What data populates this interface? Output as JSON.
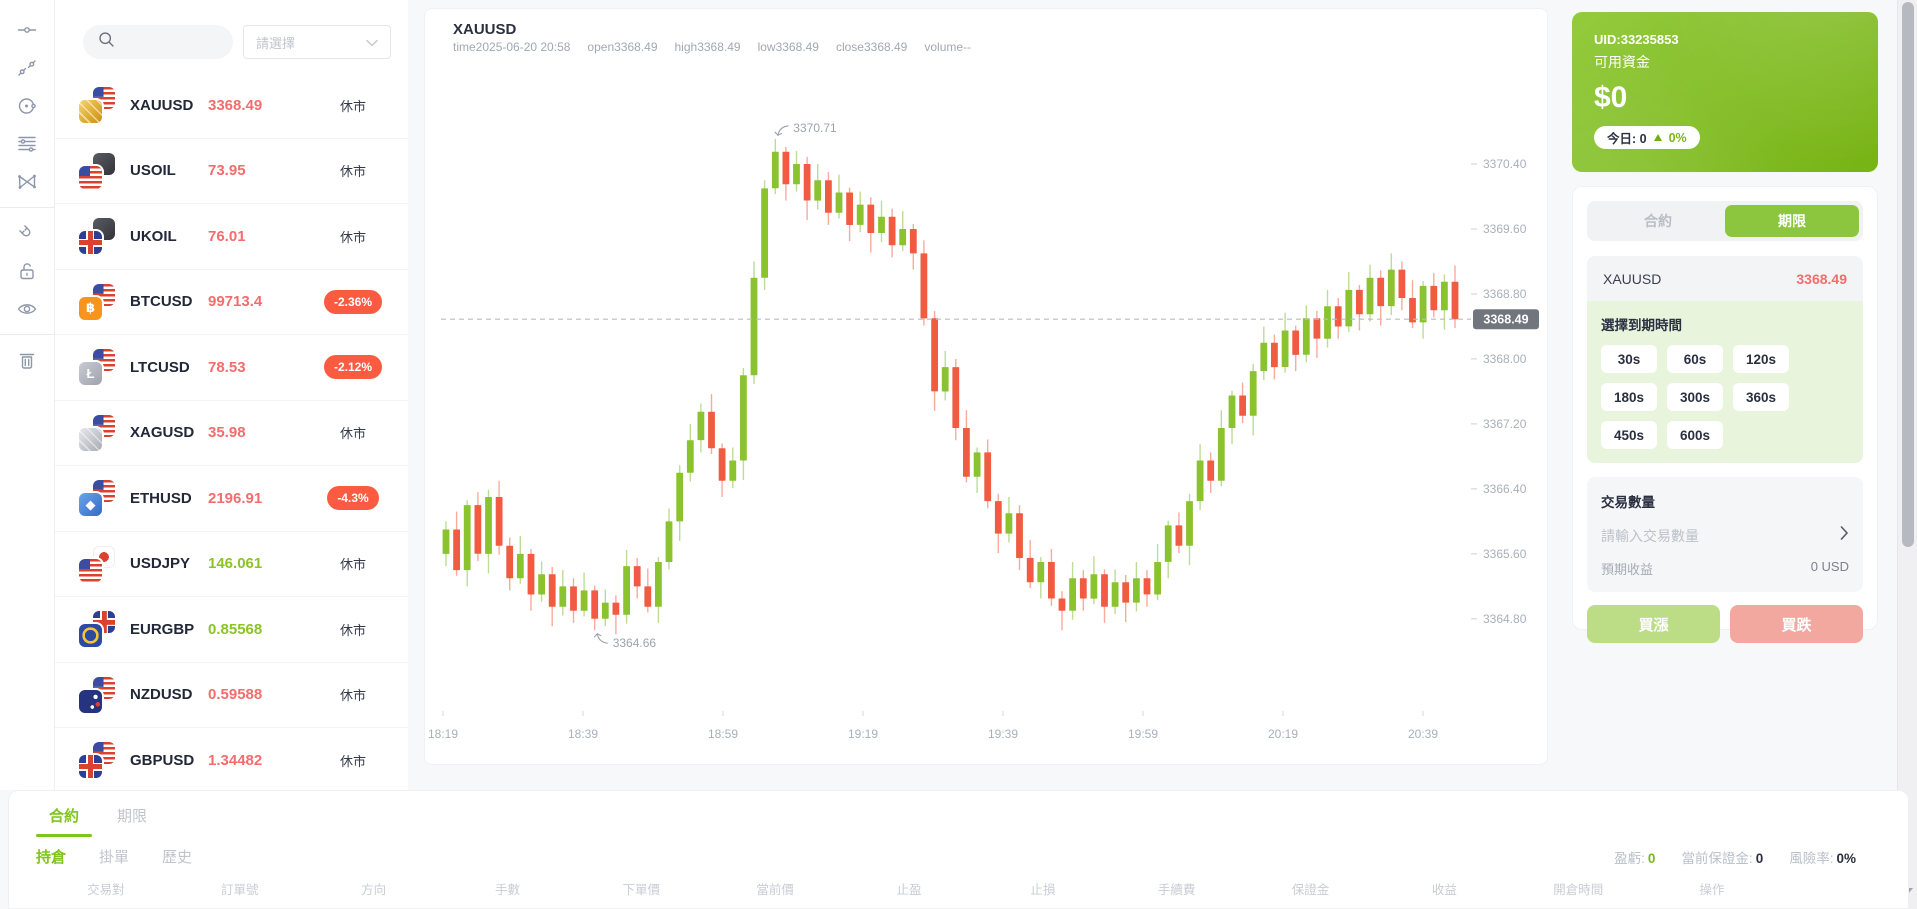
{
  "rail": {
    "tools": [
      {
        "name": "horizontal-line",
        "divider_after": false
      },
      {
        "name": "trend-line",
        "divider_after": false
      },
      {
        "name": "ellipse",
        "divider_after": false
      },
      {
        "name": "fib-retracement",
        "divider_after": false
      },
      {
        "name": "xabcd-pattern",
        "divider_after": true
      },
      {
        "name": "magnet",
        "divider_after": false
      },
      {
        "name": "unlock",
        "divider_after": false
      },
      {
        "name": "visibility",
        "divider_after": true
      },
      {
        "name": "delete",
        "divider_after": false
      }
    ]
  },
  "watchlist": {
    "select_value": "請選擇",
    "items": [
      {
        "symbol": "XAUUSD",
        "price": "3368.49",
        "price_color": "red",
        "status": "休市",
        "status_type": "text",
        "icon_front": "gold",
        "icon_back": "us"
      },
      {
        "symbol": "USOIL",
        "price": "73.95",
        "price_color": "red",
        "status": "休市",
        "status_type": "text",
        "icon_front": "us",
        "icon_back": "oil"
      },
      {
        "symbol": "UKOIL",
        "price": "76.01",
        "price_color": "red",
        "status": "休市",
        "status_type": "text",
        "icon_front": "uk",
        "icon_back": "oil"
      },
      {
        "symbol": "BTCUSD",
        "price": "99713.4",
        "price_color": "red",
        "status": "-2.36%",
        "status_type": "badge",
        "icon_front": "btc",
        "icon_back": "us"
      },
      {
        "symbol": "LTCUSD",
        "price": "78.53",
        "price_color": "red",
        "status": "-2.12%",
        "status_type": "badge",
        "icon_front": "ltc",
        "icon_back": "us"
      },
      {
        "symbol": "XAGUSD",
        "price": "35.98",
        "price_color": "red",
        "status": "休市",
        "status_type": "text",
        "icon_front": "silver",
        "icon_back": "us"
      },
      {
        "symbol": "ETHUSD",
        "price": "2196.91",
        "price_color": "red",
        "status": "-4.3%",
        "status_type": "badge",
        "icon_front": "eth",
        "icon_back": "us"
      },
      {
        "symbol": "USDJPY",
        "price": "146.061",
        "price_color": "green",
        "status": "休市",
        "status_type": "text",
        "icon_front": "us",
        "icon_back": "jp"
      },
      {
        "symbol": "EURGBP",
        "price": "0.85568",
        "price_color": "green",
        "status": "休市",
        "status_type": "text",
        "icon_front": "eu",
        "icon_back": "uk"
      },
      {
        "symbol": "NZDUSD",
        "price": "0.59588",
        "price_color": "red",
        "status": "休市",
        "status_type": "text",
        "icon_front": "nz",
        "icon_back": "us"
      },
      {
        "symbol": "GBPUSD",
        "price": "1.34482",
        "price_color": "red",
        "status": "休市",
        "status_type": "text",
        "icon_front": "uk",
        "icon_back": "us"
      }
    ]
  },
  "chart": {
    "symbol": "XAUUSD",
    "info_fields": [
      "time2025-06-20 20:58",
      "open3368.49",
      "high3368.49",
      "low3368.49",
      "close3368.49",
      "volume--"
    ]
  },
  "chart_data": {
    "type": "candlestick",
    "title": "XAUUSD",
    "time_of_last": "2025-06-20 20:58",
    "ohlc_header": {
      "time": "2025-06-20 20:58",
      "open": 3368.49,
      "high": 3368.49,
      "low": 3368.49,
      "close": 3368.49,
      "volume": "--"
    },
    "first_open": 3365.6,
    "closes": [
      3365.9,
      3365.4,
      3366.2,
      3365.6,
      3366.3,
      3365.7,
      3365.3,
      3365.6,
      3365.1,
      3365.35,
      3364.95,
      3365.2,
      3364.9,
      3365.15,
      3364.8,
      3365.0,
      3364.85,
      3365.45,
      3365.2,
      3364.95,
      3365.5,
      3366.0,
      3366.6,
      3367.0,
      3367.35,
      3366.9,
      3366.5,
      3366.75,
      3367.8,
      3369.0,
      3370.1,
      3370.55,
      3370.15,
      3370.4,
      3369.95,
      3370.2,
      3369.8,
      3370.05,
      3369.65,
      3369.9,
      3369.55,
      3369.75,
      3369.4,
      3369.6,
      3369.3,
      3368.5,
      3367.6,
      3367.9,
      3367.15,
      3366.55,
      3366.85,
      3366.25,
      3365.85,
      3366.1,
      3365.55,
      3365.25,
      3365.5,
      3365.05,
      3364.9,
      3365.3,
      3365.05,
      3365.35,
      3364.95,
      3365.25,
      3365.0,
      3365.3,
      3365.1,
      3365.5,
      3365.95,
      3365.7,
      3366.25,
      3366.75,
      3366.5,
      3367.15,
      3367.55,
      3367.3,
      3367.85,
      3368.2,
      3367.9,
      3368.35,
      3368.05,
      3368.5,
      3368.25,
      3368.65,
      3368.4,
      3368.85,
      3368.55,
      3369.0,
      3368.65,
      3369.1,
      3368.75,
      3368.45,
      3368.9,
      3368.6,
      3368.95,
      3368.49
    ],
    "wick_up": [
      0.1,
      0.22,
      0.06,
      0.16,
      0.09,
      0.2
    ],
    "wick_dn": [
      0.15,
      0.07,
      0.2,
      0.09,
      0.24,
      0.11
    ],
    "high_override": {
      "index": 31,
      "value": 3370.71
    },
    "low_override": {
      "index": 14,
      "value": 3364.66
    },
    "current_price": 3368.49,
    "y_ticks": [
      3370.4,
      3369.6,
      3368.8,
      3368.0,
      3367.2,
      3366.4,
      3365.6,
      3364.8
    ],
    "x_ticks": [
      "18:19",
      "18:39",
      "18:59",
      "19:19",
      "19:39",
      "19:59",
      "20:19",
      "20:39"
    ],
    "ylim": [
      3363.69,
      3371.57
    ],
    "annotations": [
      {
        "index": 31,
        "value": 3370.71,
        "text": "3370.71",
        "position": "above"
      },
      {
        "index": 14,
        "value": 3364.66,
        "text": "3364.66",
        "position": "below"
      }
    ],
    "colors": {
      "up": "#8ac32f",
      "up_wick": "#bcdd95",
      "down": "#f15b42",
      "down_wick": "#f8ab9c",
      "price_line": "#b9bcc2",
      "price_label_bg": "#70757e",
      "axis_text": "#a9b0ba",
      "annotation": "#9aa3ad"
    }
  },
  "account": {
    "uid": "UID:33235853",
    "balance_label": "可用資金",
    "balance": "$0",
    "today_label": "今日: 0",
    "today_change": "0%"
  },
  "trade_panel": {
    "tabs": [
      {
        "label": "合約"
      },
      {
        "label": "期限"
      }
    ],
    "symbol": "XAUUSD",
    "price": "3368.49",
    "expiry_label": "選擇到期時間",
    "durations": [
      "30s",
      "60s",
      "120s",
      "180s",
      "300s",
      "360s",
      "450s",
      "600s"
    ],
    "amount_label": "交易數量",
    "amount_placeholder": "請輸入交易數量",
    "expected_label": "預期收益",
    "expected_value": "0 USD",
    "buy_up": "買漲",
    "buy_down": "買跌"
  },
  "bottom_panel": {
    "tabs": [
      {
        "label": "合約",
        "active": true
      },
      {
        "label": "期限",
        "active": false
      }
    ],
    "sub_tabs": [
      {
        "label": "持倉",
        "active": true
      },
      {
        "label": "掛單",
        "active": false
      },
      {
        "label": "歷史",
        "active": false
      }
    ],
    "stats": [
      {
        "label": "盈虧:",
        "value": "0",
        "green": true
      },
      {
        "label": "當前保證金:",
        "value": "0",
        "green": false
      },
      {
        "label": "風險率:",
        "value": "0%",
        "green": false
      }
    ],
    "columns": [
      "交易對",
      "訂單號",
      "方向",
      "手數",
      "下單價",
      "當前價",
      "止盈",
      "止損",
      "手續費",
      "保證金",
      "收益",
      "開倉時間",
      "操作"
    ]
  },
  "colors": {
    "accent": "#8cc63e",
    "badge_red": "#fb5b40",
    "price_red": "#f56c6c",
    "price_green": "#8cc327"
  }
}
